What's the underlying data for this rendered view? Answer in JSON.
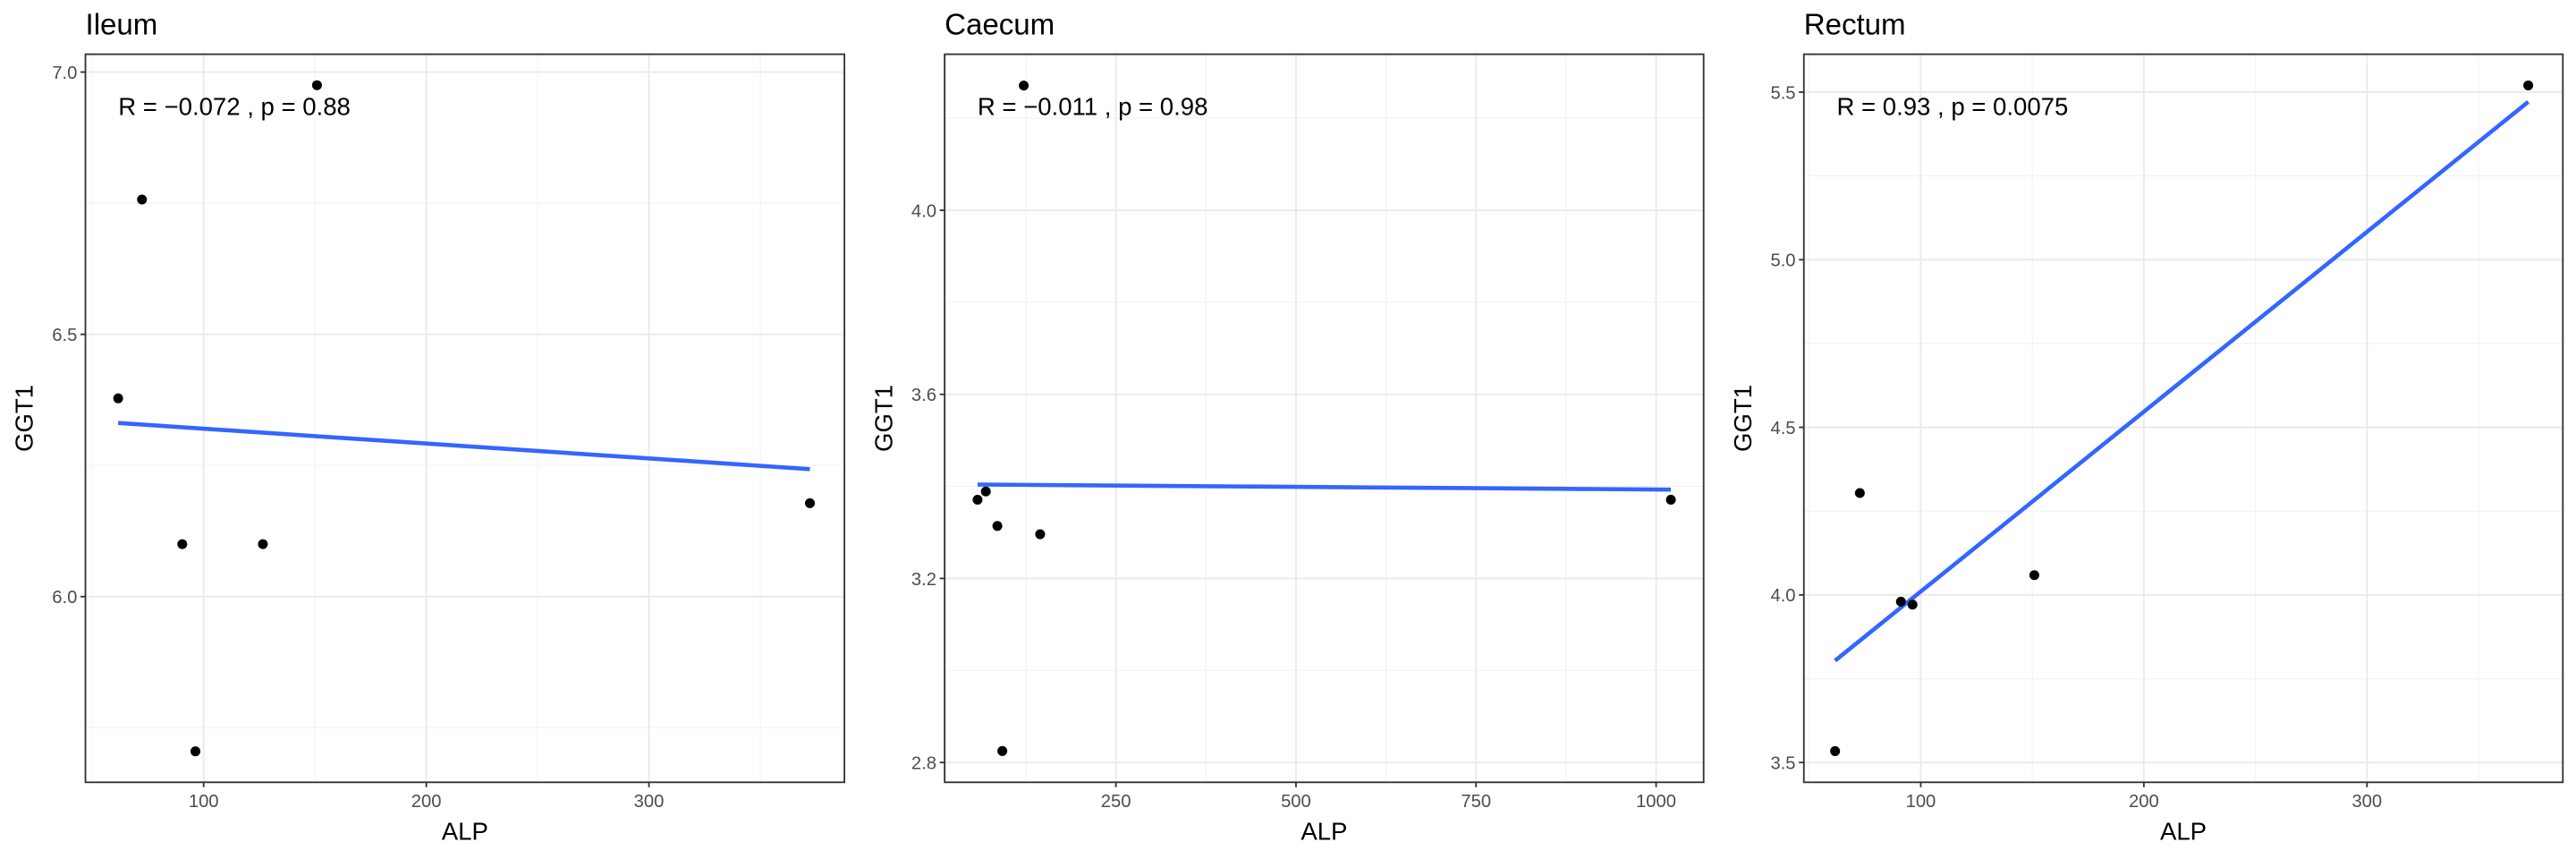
{
  "chart_data": [
    {
      "type": "scatter",
      "title": "Ileum",
      "annotation": "R = −0.072 , p = 0.88",
      "x_label": "ALP",
      "y_label": "GGT1",
      "x": [
        61.6,
        72.3,
        90.4,
        96.3,
        126.6,
        150.9,
        372.3
      ],
      "values": [
        6.378,
        6.757,
        6.1,
        5.705,
        6.1,
        6.975,
        6.178
      ],
      "color": "#000000",
      "fit_line": {
        "x": [
          61.6,
          372.3
        ],
        "y": [
          6.331,
          6.243
        ],
        "color": "#3366ff"
      },
      "xlim": [
        46.9,
        387.8
      ],
      "ylim": [
        5.646,
        7.034
      ],
      "xticks": [
        100,
        200,
        300
      ],
      "yticks": [
        {
          "value": 6,
          "label": "6.0"
        },
        6.5,
        {
          "value": 7,
          "label": "7.0"
        }
      ],
      "grid": true
    },
    {
      "type": "scatter",
      "title": "Caecum",
      "annotation": "R = −0.011 , p = 0.98",
      "x_label": "ALP",
      "y_label": "GGT1",
      "x": [
        57.9,
        69.4,
        85.4,
        92.3,
        122,
        144.8,
        1020.5
      ],
      "values": [
        3.371,
        3.389,
        3.314,
        2.825,
        4.271,
        3.296,
        3.371
      ],
      "color": "#000000",
      "fit_line": {
        "x": [
          57.9,
          1020.5
        ],
        "y": [
          3.404,
          3.393
        ],
        "color": "#3366ff"
      },
      "xlim": [
        12.2,
        1066
      ],
      "ylim": [
        2.757,
        4.339
      ],
      "xticks": [
        250,
        500,
        750,
        1000
      ],
      "yticks": [
        2.8,
        3.2,
        3.6,
        {
          "value": 4,
          "label": "4.0"
        }
      ],
      "grid": true
    },
    {
      "type": "scatter",
      "title": "Rectum",
      "annotation": "R = 0.93 , p = 0.0075",
      "x_label": "ALP",
      "y_label": "GGT1",
      "x": [
        61.6,
        72.7,
        91.1,
        96.3,
        150.9,
        372.3
      ],
      "values": [
        3.534,
        4.304,
        3.98,
        3.971,
        4.059,
        5.52
      ],
      "color": "#000000",
      "fit_line": {
        "x": [
          61.6,
          372.3
        ],
        "y": [
          3.804,
          5.471
        ],
        "color": "#3366ff"
      },
      "xlim": [
        47.6,
        387.8
      ],
      "ylim": [
        3.441,
        5.613
      ],
      "xticks": [
        100,
        200,
        300
      ],
      "yticks": [
        3.5,
        {
          "value": 4,
          "label": "4.0"
        },
        4.5,
        {
          "value": 5,
          "label": "5.0"
        },
        5.5
      ],
      "grid": true
    }
  ]
}
